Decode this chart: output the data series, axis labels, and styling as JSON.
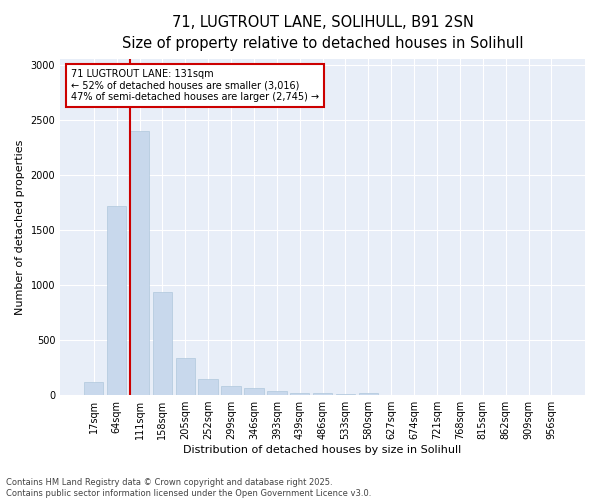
{
  "title_line1": "71, LUGTROUT LANE, SOLIHULL, B91 2SN",
  "title_line2": "Size of property relative to detached houses in Solihull",
  "xlabel": "Distribution of detached houses by size in Solihull",
  "ylabel": "Number of detached properties",
  "bar_color": "#c8d8ec",
  "bar_edge_color": "#b0c8dc",
  "background_color": "#ffffff",
  "plot_bg_color": "#e8eef8",
  "grid_color": "#ffffff",
  "annotation_box_color": "#cc0000",
  "annotation_line_color": "#cc0000",
  "annotation_text": "71 LUGTROUT LANE: 131sqm\n← 52% of detached houses are smaller (3,016)\n47% of semi-detached houses are larger (2,745) →",
  "property_bin_index": 2,
  "categories": [
    "17sqm",
    "64sqm",
    "111sqm",
    "158sqm",
    "205sqm",
    "252sqm",
    "299sqm",
    "346sqm",
    "393sqm",
    "439sqm",
    "486sqm",
    "533sqm",
    "580sqm",
    "627sqm",
    "674sqm",
    "721sqm",
    "768sqm",
    "815sqm",
    "862sqm",
    "909sqm",
    "956sqm"
  ],
  "values": [
    120,
    1720,
    2400,
    940,
    340,
    150,
    80,
    65,
    40,
    20,
    15,
    10,
    20,
    0,
    0,
    0,
    0,
    0,
    0,
    0,
    0
  ],
  "ylim": [
    0,
    3050
  ],
  "yticks": [
    0,
    500,
    1000,
    1500,
    2000,
    2500,
    3000
  ],
  "footer_text": "Contains HM Land Registry data © Crown copyright and database right 2025.\nContains public sector information licensed under the Open Government Licence v3.0.",
  "title_fontsize": 10.5,
  "subtitle_fontsize": 9.5,
  "axis_label_fontsize": 8,
  "tick_fontsize": 7,
  "annotation_fontsize": 7,
  "footer_fontsize": 6
}
